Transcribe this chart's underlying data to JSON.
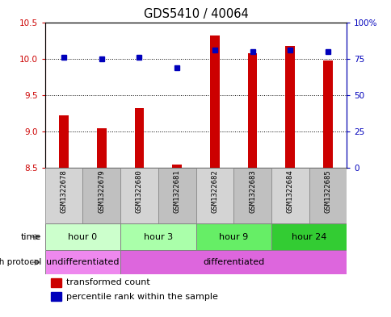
{
  "title": "GDS5410 / 40064",
  "samples": [
    "GSM1322678",
    "GSM1322679",
    "GSM1322680",
    "GSM1322681",
    "GSM1322682",
    "GSM1322683",
    "GSM1322684",
    "GSM1322685"
  ],
  "transformed_count": [
    9.22,
    9.04,
    9.32,
    8.55,
    10.32,
    10.07,
    10.17,
    9.98
  ],
  "percentile_rank": [
    76,
    75,
    76,
    69,
    81,
    80,
    81,
    80
  ],
  "ylim_left": [
    8.5,
    10.5
  ],
  "ylim_right": [
    0,
    100
  ],
  "yticks_left": [
    8.5,
    9.0,
    9.5,
    10.0,
    10.5
  ],
  "yticks_right": [
    0,
    25,
    50,
    75,
    100
  ],
  "ytick_labels_right": [
    "0",
    "25",
    "50",
    "75",
    "100%"
  ],
  "bar_color": "#cc0000",
  "dot_color": "#0000bb",
  "bar_bottom": 8.5,
  "bar_width": 0.25,
  "groups": [
    {
      "label": "hour 0",
      "samples": [
        0,
        1
      ],
      "color": "#ccffcc"
    },
    {
      "label": "hour 3",
      "samples": [
        2,
        3
      ],
      "color": "#aaffaa"
    },
    {
      "label": "hour 9",
      "samples": [
        4,
        5
      ],
      "color": "#66ee66"
    },
    {
      "label": "hour 24",
      "samples": [
        6,
        7
      ],
      "color": "#33cc33"
    }
  ],
  "protocol_groups": [
    {
      "label": "undifferentiated",
      "samples": [
        0,
        1
      ],
      "color": "#ee88ee"
    },
    {
      "label": "differentiated",
      "samples": [
        2,
        3,
        4,
        5,
        6,
        7
      ],
      "color": "#dd66dd"
    }
  ],
  "legend_bar_label": "transformed count",
  "legend_dot_label": "percentile rank within the sample",
  "time_label": "time",
  "protocol_label": "growth protocol",
  "axis_color_left": "#cc0000",
  "axis_color_right": "#0000bb",
  "sample_box_color1": "#d4d4d4",
  "sample_box_color2": "#c0c0c0"
}
